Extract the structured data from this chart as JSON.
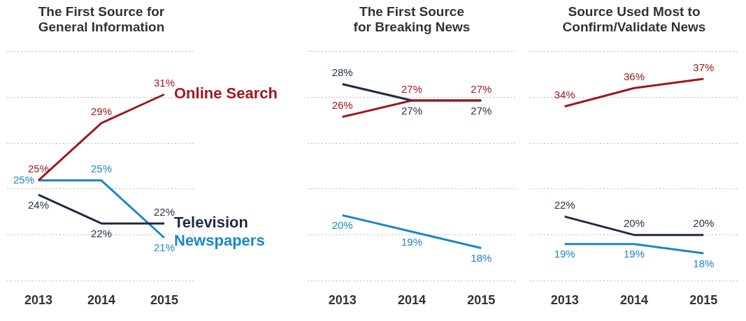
{
  "chart_data": [
    {
      "type": "line",
      "title": "The First Source for General Information",
      "categories": [
        "2013",
        "2014",
        "2015"
      ],
      "series": [
        {
          "name": "Online Search",
          "color": "#a0171f",
          "values": [
            25,
            29,
            31
          ],
          "value_labels": [
            "25%",
            "29%",
            "31%"
          ]
        },
        {
          "name": "Television",
          "color": "#1f2b41",
          "values": [
            24,
            22,
            22
          ],
          "value_labels": [
            "24%",
            "22%",
            "22%"
          ]
        },
        {
          "name": "Newspapers",
          "color": "#1a87c9",
          "values": [
            25,
            25,
            21
          ],
          "value_labels": [
            "25%",
            "25%",
            "21%"
          ]
        }
      ],
      "grid": "y",
      "tick_labels": "x",
      "marker": "none"
    },
    {
      "type": "line",
      "title": "The First Source for Breaking News",
      "categories": [
        "2013",
        "2014",
        "2015"
      ],
      "series": [
        {
          "color": "#a0171f",
          "values": [
            26,
            27,
            27
          ],
          "value_labels": [
            "26%",
            "27%",
            "27%"
          ]
        },
        {
          "color": "#1f2b41",
          "values": [
            28,
            27,
            27
          ],
          "value_labels": [
            "28%",
            "27%",
            "27%"
          ]
        },
        {
          "color": "#1a87c9",
          "values": [
            20,
            19,
            18
          ],
          "value_labels": [
            "20%",
            "19%",
            "18%"
          ]
        }
      ],
      "grid": "y",
      "tick_labels": "x",
      "marker": "none"
    },
    {
      "type": "line",
      "title": "Source Used Most to Confirm/Validate News",
      "categories": [
        "2013",
        "2014",
        "2015"
      ],
      "series": [
        {
          "color": "#a0171f",
          "values": [
            34,
            36,
            37
          ],
          "value_labels": [
            "34%",
            "36%",
            "37%"
          ]
        },
        {
          "color": "#1f2b41",
          "values": [
            22,
            20,
            20
          ],
          "value_labels": [
            "22%",
            "20%",
            "20%"
          ]
        },
        {
          "color": "#1a87c9",
          "values": [
            19,
            19,
            18
          ],
          "value_labels": [
            "19%",
            "19%",
            "18%"
          ]
        }
      ],
      "grid": "y",
      "tick_labels": "x",
      "marker": "none"
    }
  ]
}
